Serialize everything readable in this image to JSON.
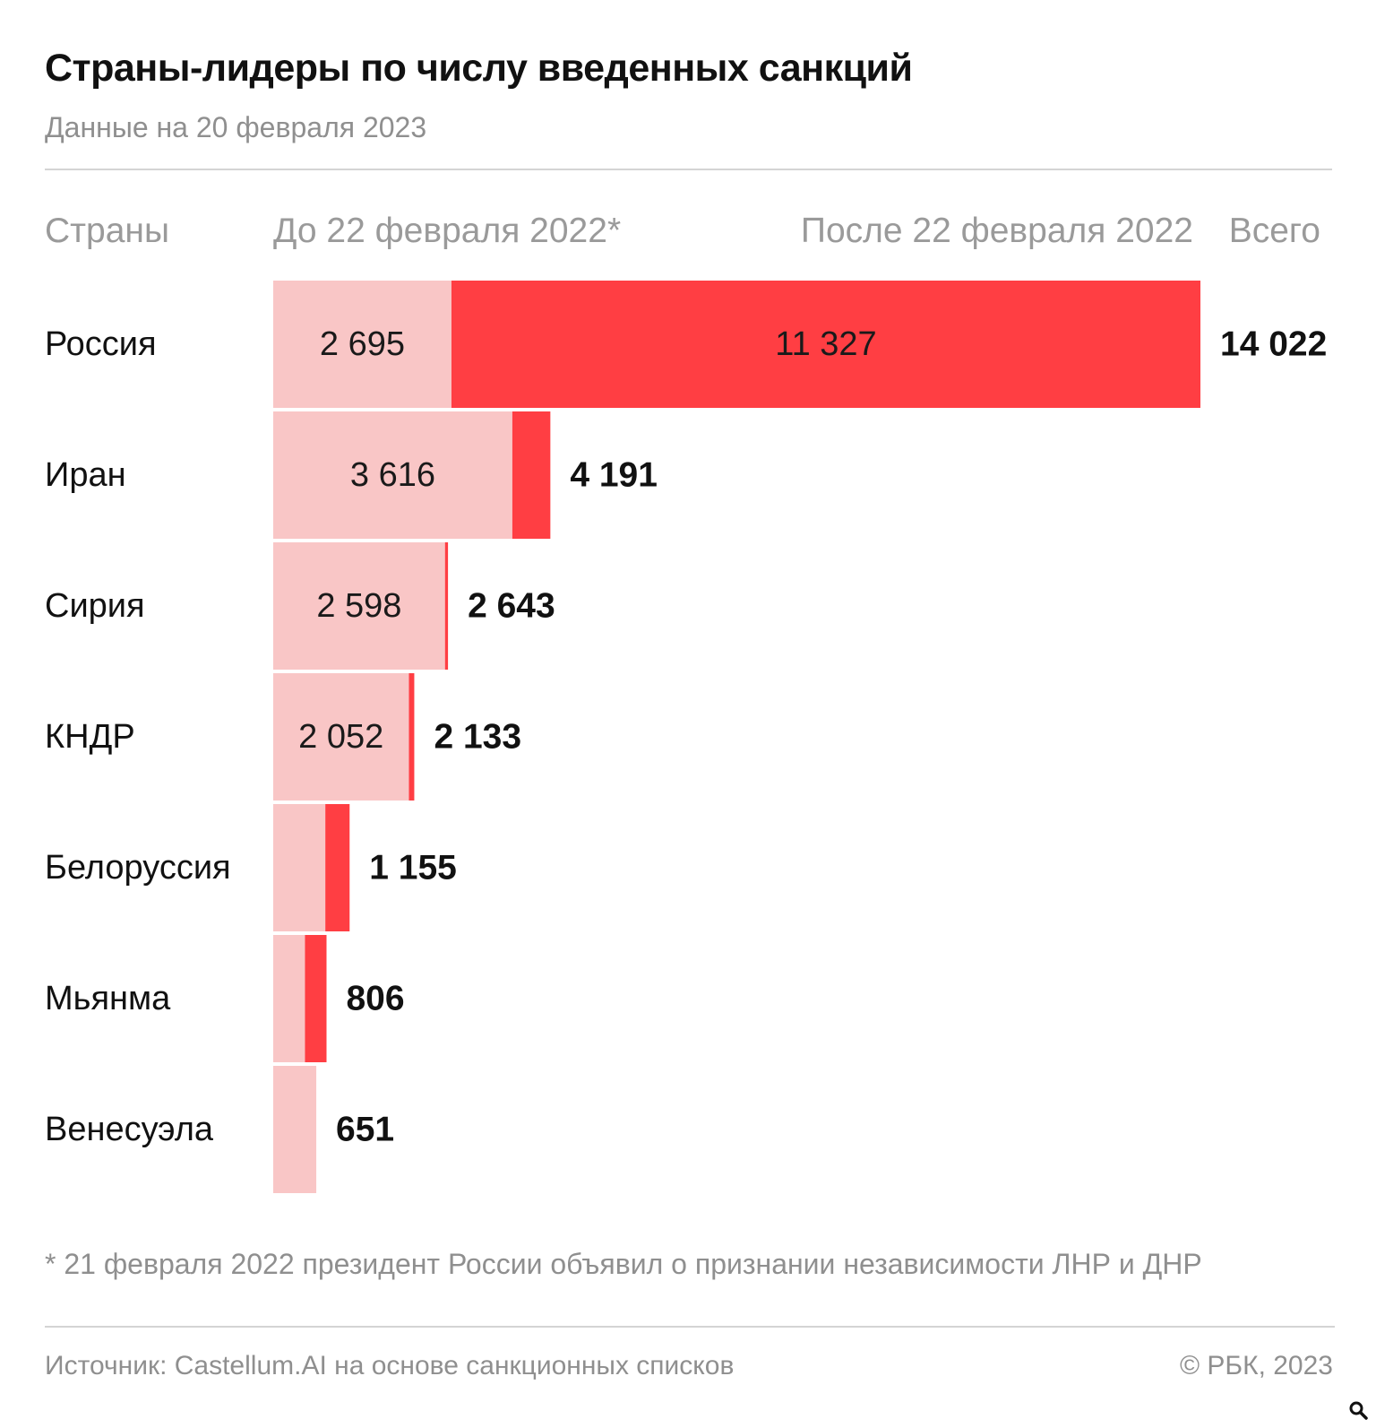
{
  "header": {
    "title": "Страны-лидеры по числу введенных санкций",
    "subtitle": "Данные на 20 февраля 2023"
  },
  "columns": {
    "country": "Страны",
    "before": "До 22 февраля 2022*",
    "after": "После 22 февраля 2022",
    "total": "Всего"
  },
  "footnote": "* 21 февраля 2022 президент России объявил о признании независимости ЛНР и ДНР",
  "footer": {
    "source": "Источник: Castellum.AI на основе санкционных списков",
    "copyright": "© РБК, 2023"
  },
  "colors": {
    "before": "#f9c6c6",
    "after": "#ff3e43"
  },
  "icons": {
    "zoom": "magnifier-icon"
  },
  "chart_data": {
    "type": "bar",
    "orientation": "horizontal",
    "stacked": true,
    "categories": [
      "Россия",
      "Иран",
      "Сирия",
      "КНДР",
      "Белоруссия",
      "Мьянма",
      "Венесуэла"
    ],
    "series": [
      {
        "name": "До 22 февраля 2022*",
        "values": [
          2695,
          3616,
          2598,
          2052,
          788,
          480,
          651
        ],
        "labels": [
          "2 695",
          "3 616",
          "2 598",
          "2 052",
          "",
          "",
          ""
        ]
      },
      {
        "name": "После 22 февраля 2022",
        "values": [
          11327,
          575,
          45,
          81,
          367,
          326,
          0
        ],
        "labels": [
          "11 327",
          "",
          "",
          "",
          "",
          "",
          ""
        ]
      }
    ],
    "totals": [
      14022,
      4191,
      2643,
      2133,
      1155,
      806,
      651
    ],
    "total_labels": [
      "14 022",
      "4 191",
      "2 643",
      "2 133",
      "1 155",
      "806",
      "651"
    ],
    "xlim": [
      0,
      14022
    ],
    "grid": false,
    "legend": "top"
  }
}
